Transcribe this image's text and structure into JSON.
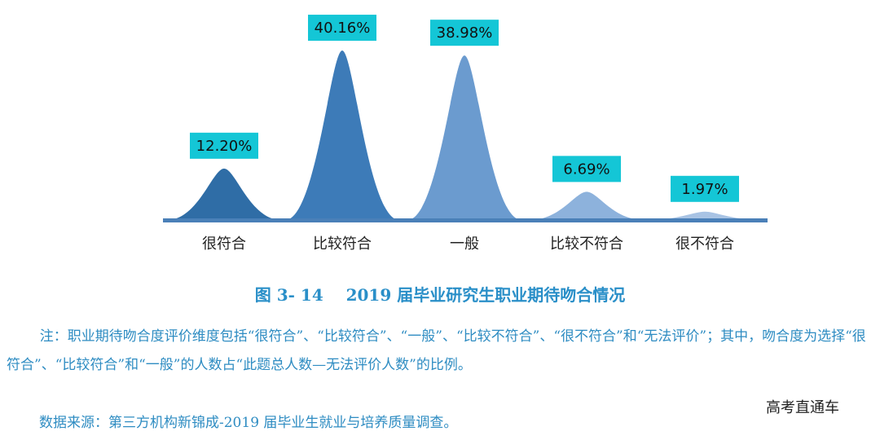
{
  "chart_data": {
    "type": "peak",
    "categories": [
      "很符合",
      "比较符合",
      "一般",
      "比较不符合",
      "很不符合"
    ],
    "values": [
      12.2,
      40.16,
      38.98,
      6.69,
      1.97
    ],
    "value_labels": [
      "12.20%",
      "40.16%",
      "38.98%",
      "6.69%",
      "1.97%"
    ],
    "colors": [
      "#2f6da6",
      "#3d7bb8",
      "#6b9bcf",
      "#8db2dc",
      "#a8c3e4"
    ],
    "ylim": [
      0,
      45
    ]
  },
  "caption": "图 3- 14    2019 届毕业研究生职业期待吻合情况",
  "note": "注：职业期待吻合度评价维度包括“很符合”、“比较符合”、“一般”、“比较不符合”、“很不符合”和“无法评价”；其中，吻合度为选择“很符合”、“比较符合”和“一般”的人数占“此题总人数—无法评价人数”的比例。",
  "source": "数据来源：第三方机构新锦成-2019 届毕业生就业与培养质量调查。",
  "watermark": "高考直通车"
}
